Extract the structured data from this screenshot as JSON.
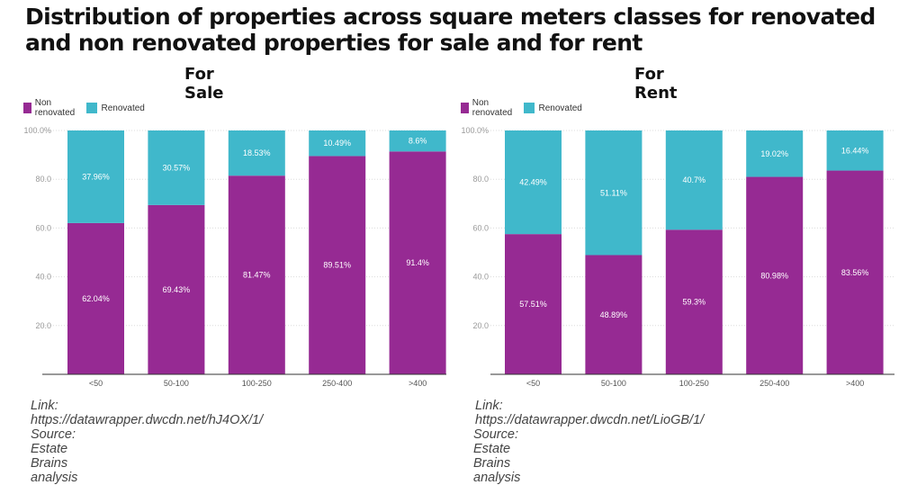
{
  "title": "Distribution of properties across square meters classes for renovated and non renovated properties for sale and for rent",
  "colors": {
    "non_renovated": "#962a93",
    "renovated": "#40b8cb"
  },
  "chart_data": [
    {
      "type": "bar",
      "stacked": true,
      "title": "For Sale",
      "categories": [
        "<50",
        "50-100",
        "100-250",
        "250-400",
        ">400"
      ],
      "series": [
        {
          "name": "Non renovated",
          "values": [
            62.04,
            69.43,
            81.47,
            89.51,
            91.4
          ],
          "labels": [
            "62.04%",
            "69.43%",
            "81.47%",
            "89.51%",
            "91.4%"
          ]
        },
        {
          "name": "Renovated",
          "values": [
            37.96,
            30.57,
            18.53,
            10.49,
            8.6
          ],
          "labels": [
            "37.96%",
            "30.57%",
            "18.53%",
            "10.49%",
            "8.6%"
          ]
        }
      ],
      "yticks": [
        "100.0%",
        "80.0",
        "60.0",
        "40.0",
        "20.0"
      ],
      "ylim": [
        0,
        100
      ],
      "legend": "top-left",
      "link": "Link: https://datawrapper.dwcdn.net/hJ4OX/1/",
      "source": "Source: Estate Brains analysis"
    },
    {
      "type": "bar",
      "stacked": true,
      "title": "For Rent",
      "categories": [
        "<50",
        "50-100",
        "100-250",
        "250-400",
        ">400"
      ],
      "series": [
        {
          "name": "Non renovated",
          "values": [
            57.51,
            48.89,
            59.3,
            80.98,
            83.56
          ],
          "labels": [
            "57.51%",
            "48.89%",
            "59.3%",
            "80.98%",
            "83.56%"
          ]
        },
        {
          "name": "Renovated",
          "values": [
            42.49,
            51.11,
            40.7,
            19.02,
            16.44
          ],
          "labels": [
            "42.49%",
            "51.11%",
            "40.7%",
            "19.02%",
            "16.44%"
          ]
        }
      ],
      "yticks": [
        "100.0%",
        "80.0",
        "60.0",
        "40.0",
        "20.0"
      ],
      "ylim": [
        0,
        100
      ],
      "legend": "top-left",
      "link": "Link: https://datawrapper.dwcdn.net/LioGB/1/",
      "source": "Source: Estate Brains analysis"
    }
  ]
}
